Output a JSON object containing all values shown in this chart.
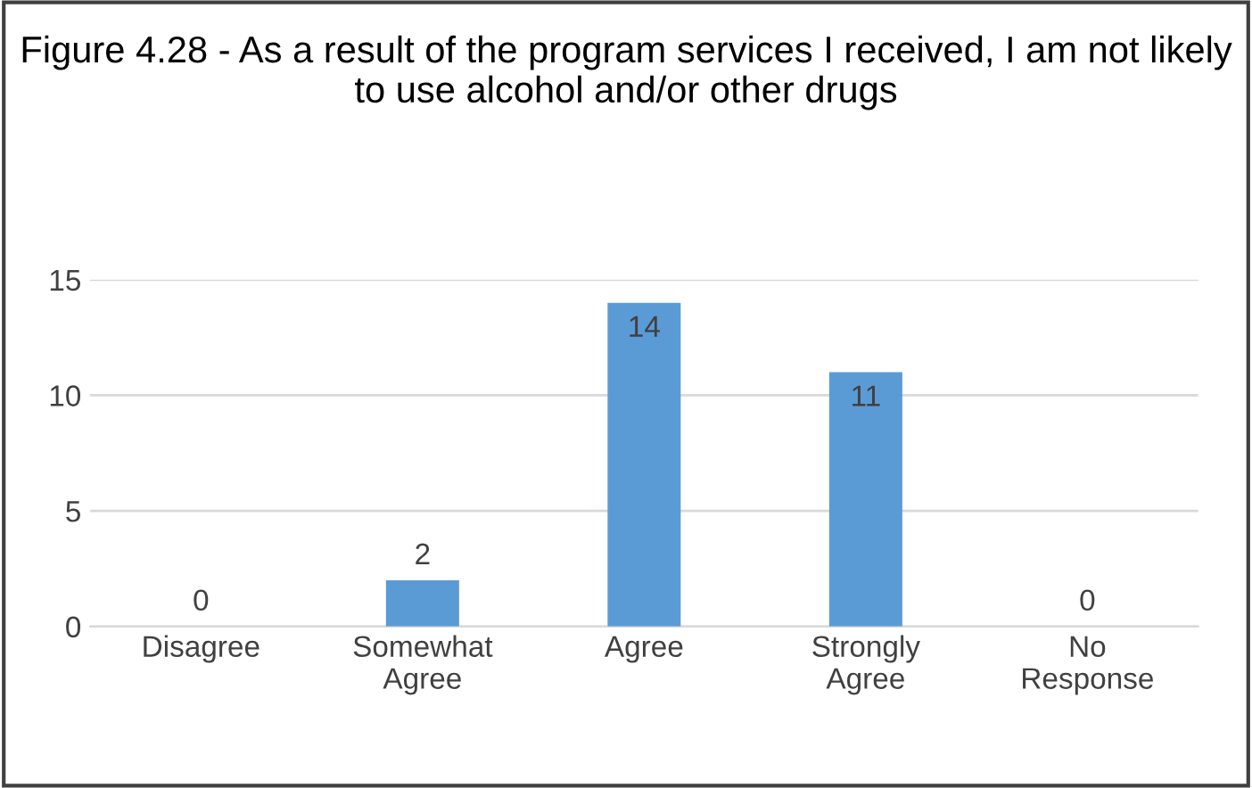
{
  "chart_data": {
    "type": "bar",
    "title": "Figure 4.28 - As a result of the program services I received, I am not likely to use alcohol and/or other drugs",
    "categories": [
      "Disagree",
      "Somewhat\nAgree",
      "Agree",
      "Strongly\nAgree",
      "No\nResponse"
    ],
    "values": [
      0,
      2,
      14,
      11,
      0
    ],
    "color": "#5b9bd5",
    "ylim": [
      0,
      15
    ],
    "yticks": [
      0,
      5,
      10,
      15
    ],
    "grid": "y",
    "data_labels": true
  }
}
